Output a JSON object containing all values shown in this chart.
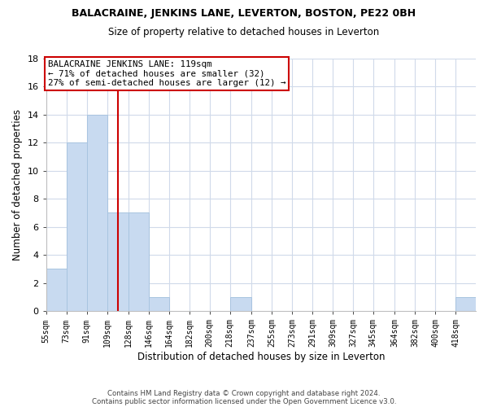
{
  "title": "BALACRAINE, JENKINS LANE, LEVERTON, BOSTON, PE22 0BH",
  "subtitle": "Size of property relative to detached houses in Leverton",
  "xlabel": "Distribution of detached houses by size in Leverton",
  "ylabel": "Number of detached properties",
  "bar_color": "#c8daf0",
  "bar_edge_color": "#a8c4e0",
  "bin_labels": [
    "55sqm",
    "73sqm",
    "91sqm",
    "109sqm",
    "128sqm",
    "146sqm",
    "164sqm",
    "182sqm",
    "200sqm",
    "218sqm",
    "237sqm",
    "255sqm",
    "273sqm",
    "291sqm",
    "309sqm",
    "327sqm",
    "345sqm",
    "364sqm",
    "382sqm",
    "400sqm",
    "418sqm"
  ],
  "counts": [
    3,
    12,
    14,
    7,
    7,
    1,
    0,
    0,
    0,
    1,
    0,
    0,
    0,
    0,
    0,
    0,
    0,
    0,
    0,
    0,
    1
  ],
  "ylim": [
    0,
    18
  ],
  "yticks": [
    0,
    2,
    4,
    6,
    8,
    10,
    12,
    14,
    16,
    18
  ],
  "property_line_x": 119,
  "bin_edges_values": [
    55,
    73,
    91,
    109,
    128,
    146,
    164,
    182,
    200,
    218,
    237,
    255,
    273,
    291,
    309,
    327,
    345,
    364,
    382,
    400,
    418,
    436
  ],
  "annotation_title": "BALACRAINE JENKINS LANE: 119sqm",
  "annotation_line1": "← 71% of detached houses are smaller (32)",
  "annotation_line2": "27% of semi-detached houses are larger (12) →",
  "annotation_box_color": "#ffffff",
  "annotation_box_edge": "#cc0000",
  "vline_color": "#cc0000",
  "footer_line1": "Contains HM Land Registry data © Crown copyright and database right 2024.",
  "footer_line2": "Contains public sector information licensed under the Open Government Licence v3.0.",
  "background_color": "#ffffff",
  "grid_color": "#d0daea"
}
